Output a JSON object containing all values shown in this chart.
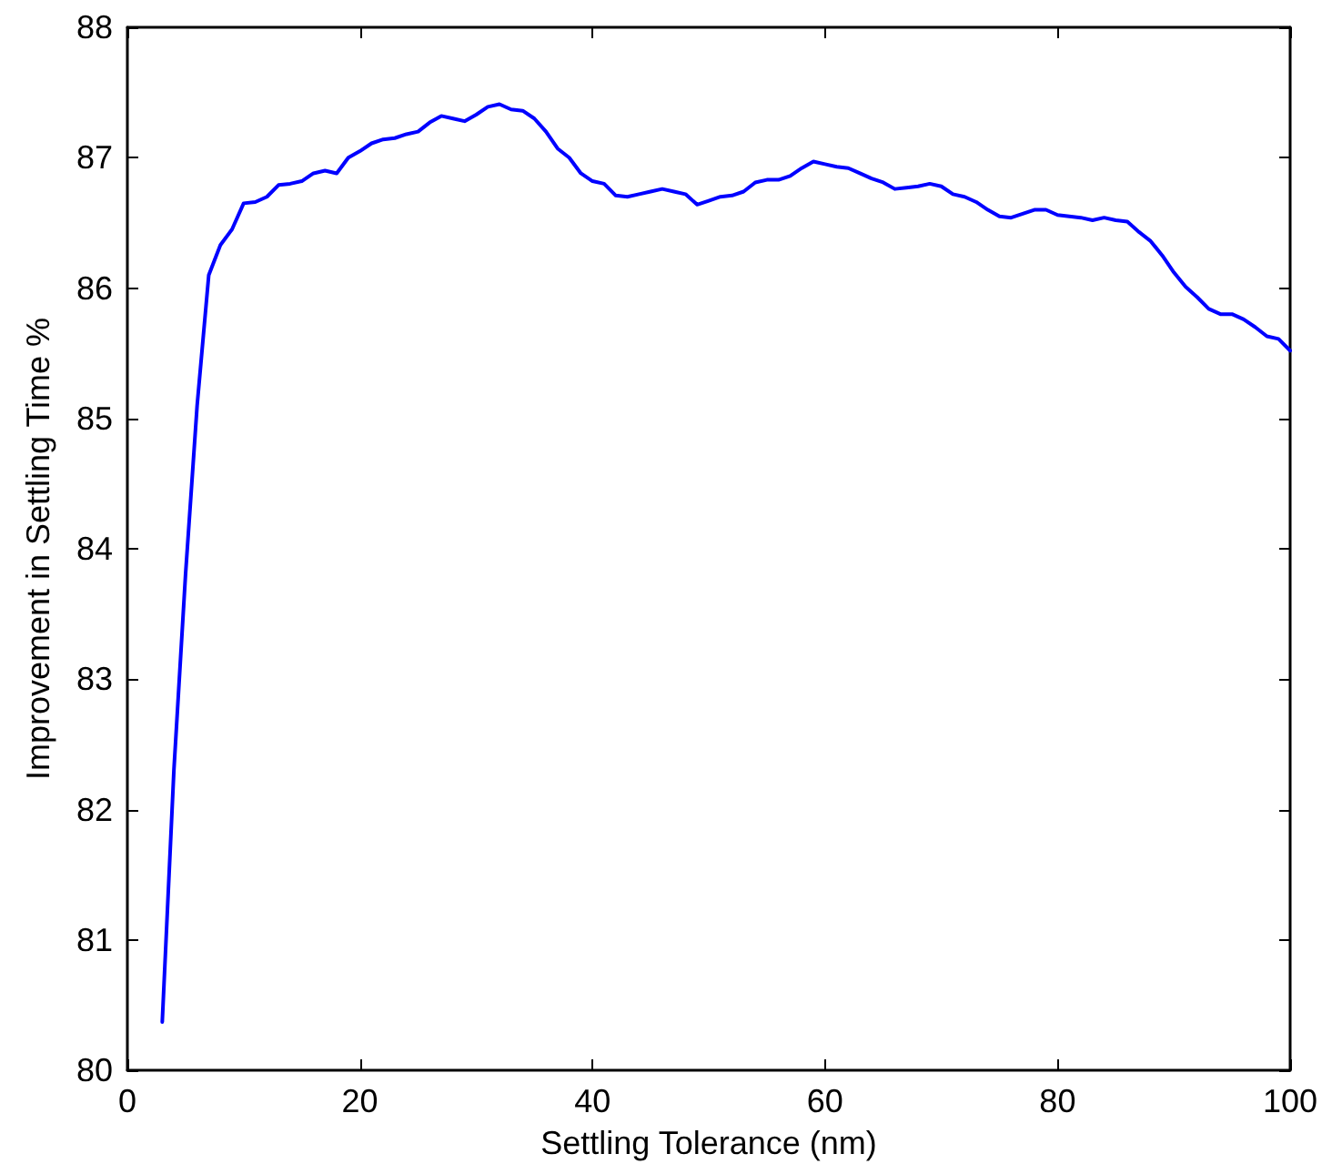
{
  "chart_data": {
    "type": "line",
    "xlabel": "Settling Tolerance (nm)",
    "ylabel": "Improvement in Settling Time %",
    "xlim": [
      0,
      100
    ],
    "xticks": [
      0,
      20,
      40,
      60,
      80,
      100
    ],
    "ylim": [
      80,
      88
    ],
    "yticks": [
      80,
      81,
      82,
      83,
      84,
      85,
      86,
      87,
      88
    ],
    "grid": false,
    "marker": "none",
    "line_style": "solid",
    "series": [
      {
        "color": "#0000ff",
        "x": [
          3,
          4,
          5,
          6,
          7,
          8,
          9,
          10,
          11,
          12,
          13,
          14,
          15,
          16,
          17,
          18,
          19,
          20,
          21,
          22,
          23,
          24,
          25,
          26,
          27,
          28,
          29,
          30,
          31,
          32,
          33,
          34,
          35,
          36,
          37,
          38,
          39,
          40,
          41,
          42,
          43,
          44,
          45,
          46,
          47,
          48,
          49,
          50,
          51,
          52,
          53,
          54,
          55,
          56,
          57,
          58,
          59,
          60,
          61,
          62,
          63,
          64,
          65,
          66,
          67,
          68,
          69,
          70,
          71,
          72,
          73,
          74,
          75,
          76,
          77,
          78,
          79,
          80,
          81,
          82,
          83,
          84,
          85,
          86,
          87,
          88,
          89,
          90,
          91,
          92,
          93,
          94,
          95,
          96,
          97,
          98,
          99,
          100
        ],
        "values": [
          80.37,
          82.3,
          83.8,
          85.1,
          86.1,
          86.33,
          86.45,
          86.65,
          86.66,
          86.7,
          86.79,
          86.8,
          86.82,
          86.88,
          86.9,
          86.88,
          87.0,
          87.05,
          87.11,
          87.14,
          87.15,
          87.18,
          87.2,
          87.27,
          87.32,
          87.3,
          87.28,
          87.33,
          87.39,
          87.41,
          87.37,
          87.36,
          87.3,
          87.2,
          87.07,
          87.0,
          86.88,
          86.82,
          86.8,
          86.71,
          86.7,
          86.72,
          86.74,
          86.76,
          86.74,
          86.72,
          86.64,
          86.67,
          86.7,
          86.71,
          86.74,
          86.81,
          86.83,
          86.83,
          86.86,
          86.92,
          86.97,
          86.95,
          86.93,
          86.92,
          86.88,
          86.84,
          86.81,
          86.76,
          86.77,
          86.78,
          86.8,
          86.78,
          86.72,
          86.7,
          86.66,
          86.6,
          86.55,
          86.54,
          86.57,
          86.6,
          86.6,
          86.56,
          86.55,
          86.54,
          86.52,
          86.54,
          86.52,
          86.51,
          86.43,
          86.36,
          86.25,
          86.12,
          86.01,
          85.93,
          85.84,
          85.8,
          85.8,
          85.76,
          85.7,
          85.63,
          85.61,
          85.52
        ]
      }
    ]
  }
}
